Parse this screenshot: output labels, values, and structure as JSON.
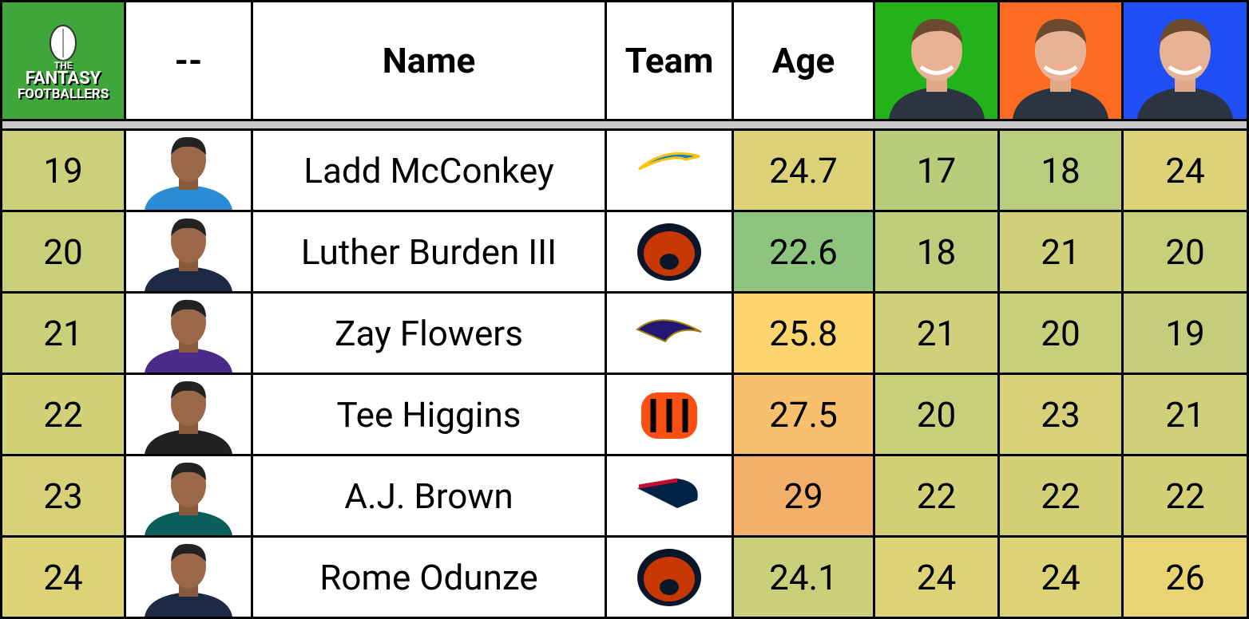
{
  "header": {
    "logo": [
      "THE",
      "FANTASY",
      "FOOTBALLERS"
    ],
    "columns": [
      "--",
      "Name",
      "Team",
      "Age"
    ],
    "host_colors": [
      "#23b21a",
      "#fb6b22",
      "#1f4ff5"
    ]
  },
  "rows": [
    {
      "rank": 19,
      "name": "Ladd McConkey",
      "age": 24.7,
      "ranks": [
        17,
        18,
        24
      ],
      "rank_color": "#cdd07a",
      "age_color": "#dcd276",
      "ranks_colors": [
        "#b9cc7c",
        "#bbcc7c",
        "#dcd276"
      ]
    },
    {
      "rank": 20,
      "name": "Luther Burden III",
      "age": 22.6,
      "ranks": [
        18,
        21,
        20
      ],
      "rank_color": "#c9cf79",
      "age_color": "#8dc47e",
      "ranks_colors": [
        "#bfcd7b",
        "#cfd079",
        "#c8cf7a"
      ]
    },
    {
      "rank": 21,
      "name": "Zay Flowers",
      "age": 25.8,
      "ranks": [
        21,
        20,
        19
      ],
      "rank_color": "#cbcf79",
      "age_color": "#fdd56f",
      "ranks_colors": [
        "#cfd079",
        "#c8cf7a",
        "#c3cd7b"
      ]
    },
    {
      "rank": 22,
      "name": "Tee Higgins",
      "age": 27.5,
      "ranks": [
        20,
        23,
        21
      ],
      "rank_color": "#d2d078",
      "age_color": "#f8bf6c",
      "ranks_colors": [
        "#c8cf7a",
        "#d6d178",
        "#cfd079"
      ]
    },
    {
      "rank": 23,
      "name": "A.J. Brown",
      "age": 29,
      "ranks": [
        22,
        22,
        22
      ],
      "rank_color": "#d6d178",
      "age_color": "#f4b06b",
      "ranks_colors": [
        "#d3d078",
        "#d3d078",
        "#d3d078"
      ]
    },
    {
      "rank": 24,
      "name": "Rome Odunze",
      "age": 24.1,
      "ranks": [
        24,
        24,
        26
      ],
      "rank_color": "#dcd276",
      "age_color": "#c9cf7a",
      "ranks_colors": [
        "#dcd276",
        "#dcd276",
        "#e8d473"
      ]
    }
  ]
}
